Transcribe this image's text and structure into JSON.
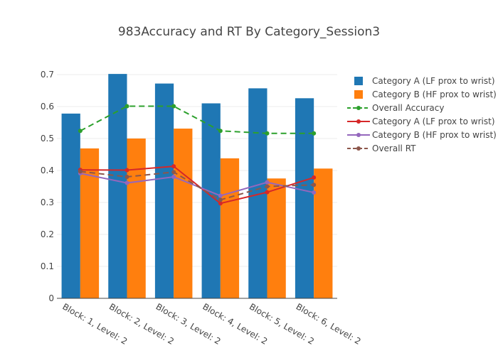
{
  "chart_data": {
    "type": "bar",
    "title": "983Accuracy and RT By Category_Session3",
    "xlabel": "",
    "ylabel": "",
    "categories": [
      "Block: 1, Level: 2",
      "Block: 2, Level: 2",
      "Block: 3, Level: 2",
      "Block: 4, Level: 2",
      "Block: 5, Level: 2",
      "Block: 6, Level: 2"
    ],
    "ylim": [
      0,
      0.72
    ],
    "yticks": [
      "0",
      "0.1",
      "0.2",
      "0.3",
      "0.4",
      "0.5",
      "0.6",
      "0.7"
    ],
    "grid": true,
    "legend_position": "right",
    "series": [
      {
        "name": "Category A (LF prox to wrist)",
        "kind": "bar",
        "color": "#1f77b4",
        "values": [
          0.578,
          0.702,
          0.672,
          0.61,
          0.657,
          0.626
        ]
      },
      {
        "name": "Category B (HF prox to wrist)",
        "kind": "bar",
        "color": "#ff7f0e",
        "values": [
          0.469,
          0.5,
          0.531,
          0.438,
          0.375,
          0.406
        ]
      },
      {
        "name": "Overall Accuracy",
        "kind": "line",
        "dash": true,
        "color": "#2ca02c",
        "values": [
          0.524,
          0.601,
          0.601,
          0.524,
          0.516,
          0.516
        ]
      },
      {
        "name": "Category A (LF prox to wrist)",
        "kind": "line",
        "dash": false,
        "color": "#d62728",
        "values": [
          0.402,
          0.401,
          0.413,
          0.297,
          0.332,
          0.378
        ]
      },
      {
        "name": "Category B (HF prox to wrist)",
        "kind": "line",
        "dash": false,
        "color": "#9467bd",
        "values": [
          0.391,
          0.361,
          0.38,
          0.321,
          0.363,
          0.331
        ]
      },
      {
        "name": "Overall RT",
        "kind": "line",
        "dash": true,
        "color": "#8c564b",
        "values": [
          0.397,
          0.38,
          0.395,
          0.308,
          0.35,
          0.355
        ]
      }
    ]
  }
}
